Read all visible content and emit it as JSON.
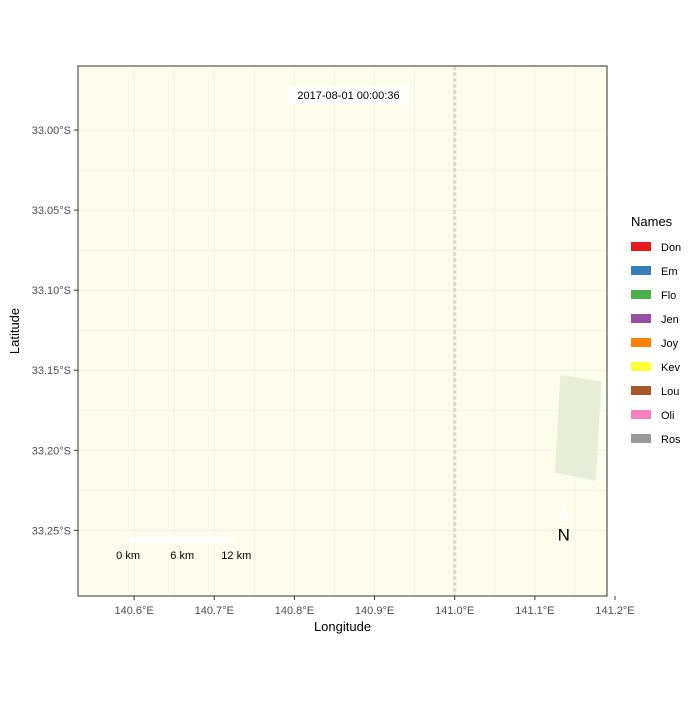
{
  "map": {
    "timestamp": "2017-08-01 00:00:36",
    "x_axis": {
      "title": "Longitude",
      "range": [
        140.53,
        141.19
      ],
      "ticks": [
        {
          "value": 140.6,
          "label": "140.6°E"
        },
        {
          "value": 140.7,
          "label": "140.7°E"
        },
        {
          "value": 140.8,
          "label": "140.8°E"
        },
        {
          "value": 140.9,
          "label": "140.9°E"
        },
        {
          "value": 141.0,
          "label": "141.0°E"
        },
        {
          "value": 141.1,
          "label": "141.1°E"
        },
        {
          "value": 141.2,
          "label": "141.2°E"
        }
      ]
    },
    "y_axis": {
      "title": "Latitude",
      "range": [
        -33.291,
        -32.96
      ],
      "ticks": [
        {
          "value": -33.0,
          "label": "33.00°S"
        },
        {
          "value": -33.05,
          "label": "33.05°S"
        },
        {
          "value": -33.1,
          "label": "33.10°S"
        },
        {
          "value": -33.15,
          "label": "33.15°S"
        },
        {
          "value": -33.2,
          "label": "33.20°S"
        },
        {
          "value": -33.25,
          "label": "33.25°S"
        }
      ]
    },
    "background_color": "#fdfdeb",
    "grid_color": "#ececdc",
    "boundary_line_lon": 141.0,
    "vegetation_patch": {
      "corners": [
        {
          "lon": 141.132,
          "lat": -33.153
        },
        {
          "lon": 141.183,
          "lat": -33.157
        },
        {
          "lon": 141.176,
          "lat": -33.219
        },
        {
          "lon": 141.125,
          "lat": -33.214
        }
      ],
      "color": "#e4ecd4"
    },
    "scale_bar": {
      "labels": [
        "0 km",
        "6 km",
        "12 km"
      ],
      "start_lon": 140.595,
      "end_lon": 140.725,
      "lat": -33.256
    },
    "north_arrow": {
      "label": "N",
      "lon": 141.136,
      "lat": -33.24
    }
  },
  "legend": {
    "title": "Names",
    "items": [
      {
        "label": "Don",
        "color": "#e41a1c"
      },
      {
        "label": "Em",
        "color": "#377eb8"
      },
      {
        "label": "Flo",
        "color": "#4daf4a"
      },
      {
        "label": "Jen",
        "color": "#984ea3"
      },
      {
        "label": "Joy",
        "color": "#ff7f00"
      },
      {
        "label": "Kev",
        "color": "#ffff33"
      },
      {
        "label": "Lou",
        "color": "#a65628"
      },
      {
        "label": "Oli",
        "color": "#f781bf"
      },
      {
        "label": "Ros",
        "color": "#999999"
      }
    ]
  }
}
